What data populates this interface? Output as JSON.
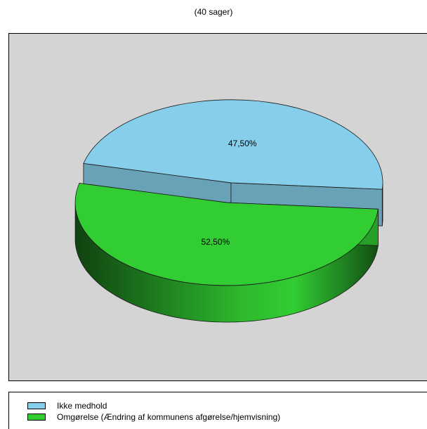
{
  "chart_data": {
    "type": "pie",
    "subtitle": "(40 sager)",
    "slices": [
      {
        "name": "Ikke medhold",
        "value": 47.5,
        "label": "47,50%",
        "color": "#87ceeb"
      },
      {
        "name": "Omgørelse (Ændring af kommunens afgørelse/hjemvisning)",
        "value": 52.5,
        "label": "52,50%",
        "color": "#32cd32"
      }
    ],
    "legend_position": "bottom",
    "plot_background": "#d4d4d4",
    "style": "3d-exploded"
  }
}
